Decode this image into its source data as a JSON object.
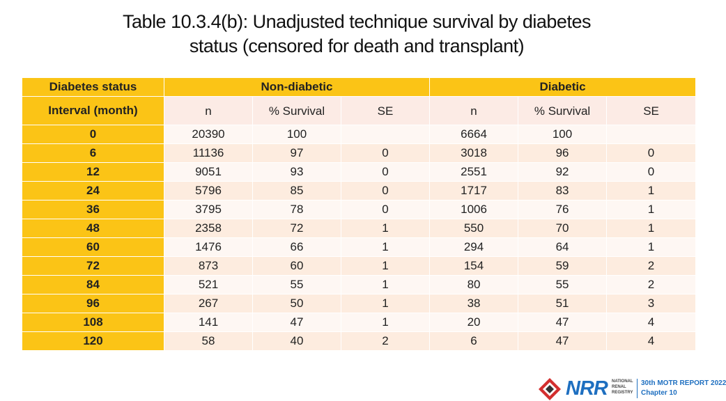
{
  "title": {
    "line1": "Table 10.3.4(b): Unadjusted technique survival by diabetes",
    "line2": "status (censored for death and transplant)"
  },
  "table": {
    "row_header_top": "Diabetes status",
    "row_header_bottom": "Interval (month)",
    "groups": [
      "Non-diabetic",
      "Diabetic"
    ],
    "subheaders": [
      "n",
      "% Survival",
      "SE",
      "n",
      "% Survival",
      "SE"
    ],
    "rows": [
      {
        "interval": "0",
        "cells": [
          "20390",
          "100",
          "",
          "6664",
          "100",
          ""
        ]
      },
      {
        "interval": "6",
        "cells": [
          "11136",
          "97",
          "0",
          "3018",
          "96",
          "0"
        ]
      },
      {
        "interval": "12",
        "cells": [
          "9051",
          "93",
          "0",
          "2551",
          "92",
          "0"
        ]
      },
      {
        "interval": "24",
        "cells": [
          "5796",
          "85",
          "0",
          "1717",
          "83",
          "1"
        ]
      },
      {
        "interval": "36",
        "cells": [
          "3795",
          "78",
          "0",
          "1006",
          "76",
          "1"
        ]
      },
      {
        "interval": "48",
        "cells": [
          "2358",
          "72",
          "1",
          "550",
          "70",
          "1"
        ]
      },
      {
        "interval": "60",
        "cells": [
          "1476",
          "66",
          "1",
          "294",
          "64",
          "1"
        ]
      },
      {
        "interval": "72",
        "cells": [
          "873",
          "60",
          "1",
          "154",
          "59",
          "2"
        ]
      },
      {
        "interval": "84",
        "cells": [
          "521",
          "55",
          "1",
          "80",
          "55",
          "2"
        ]
      },
      {
        "interval": "96",
        "cells": [
          "267",
          "50",
          "1",
          "38",
          "51",
          "3"
        ]
      },
      {
        "interval": "108",
        "cells": [
          "141",
          "47",
          "1",
          "20",
          "47",
          "4"
        ]
      },
      {
        "interval": "120",
        "cells": [
          "58",
          "40",
          "2",
          "6",
          "47",
          "4"
        ]
      }
    ]
  },
  "footer": {
    "logo_text": "NRR",
    "org_name_lines": [
      "NATIONAL",
      "RENAL",
      "REGISTRY"
    ],
    "report_line1": "30th MOTR REPORT 2022",
    "report_line2": "Chapter 10"
  },
  "colors": {
    "header_yellow": "#fbc416",
    "subheader_pink": "#fcebe5",
    "row_light": "#fef7f3",
    "row_dark": "#fdecdf",
    "brand_blue": "#1e6fc0"
  }
}
